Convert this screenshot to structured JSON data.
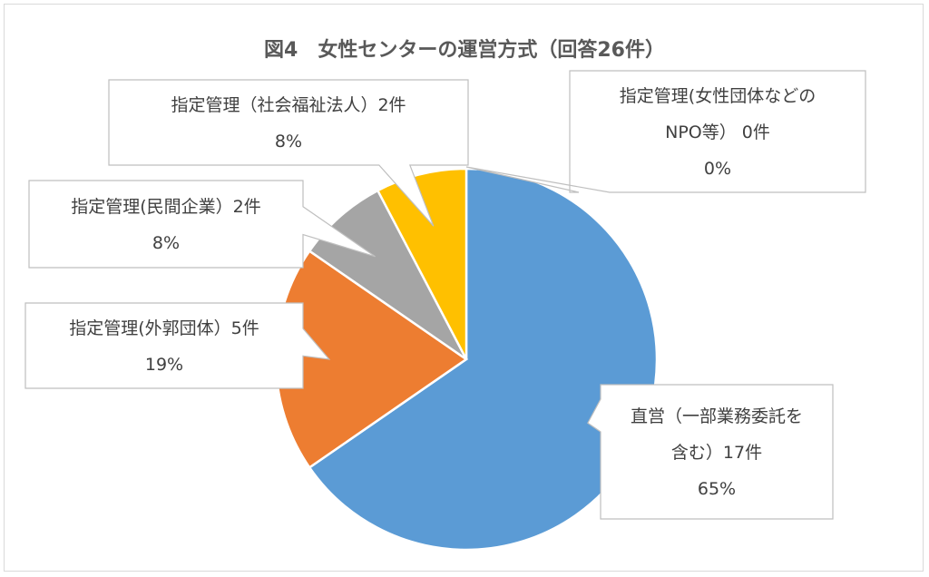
{
  "chart_data": {
    "type": "pie",
    "title": "図4　女性センターの運営方式（回答26件）",
    "start_angle_deg": 0,
    "direction": "clockwise",
    "slices": [
      {
        "name": "直営（一部業務委託を含む）",
        "count": 17,
        "percent": 65,
        "color": "#5b9bd5",
        "label_lines": [
          "直営（一部業務委託を",
          "含む）17件",
          "65%"
        ]
      },
      {
        "name": "指定管理(外郭団体）",
        "count": 5,
        "percent": 19,
        "color": "#ed7d31",
        "label_lines": [
          "指定管理(外郭団体）5件",
          "19%"
        ]
      },
      {
        "name": "指定管理(民間企業）",
        "count": 2,
        "percent": 8,
        "color": "#a5a5a5",
        "label_lines": [
          "指定管理(民間企業）2件",
          "8%"
        ]
      },
      {
        "name": "指定管理（社会福祉法人）",
        "count": 2,
        "percent": 8,
        "color": "#ffc000",
        "label_lines": [
          "指定管理（社会福祉法人）2件",
          "8%"
        ]
      },
      {
        "name": "指定管理(女性団体などのNPO等）",
        "count": 0,
        "percent": 0,
        "color": "#4472c4",
        "label_lines": [
          "指定管理(女性団体などの",
          "NPO等）  0件",
          "0%"
        ]
      }
    ]
  }
}
